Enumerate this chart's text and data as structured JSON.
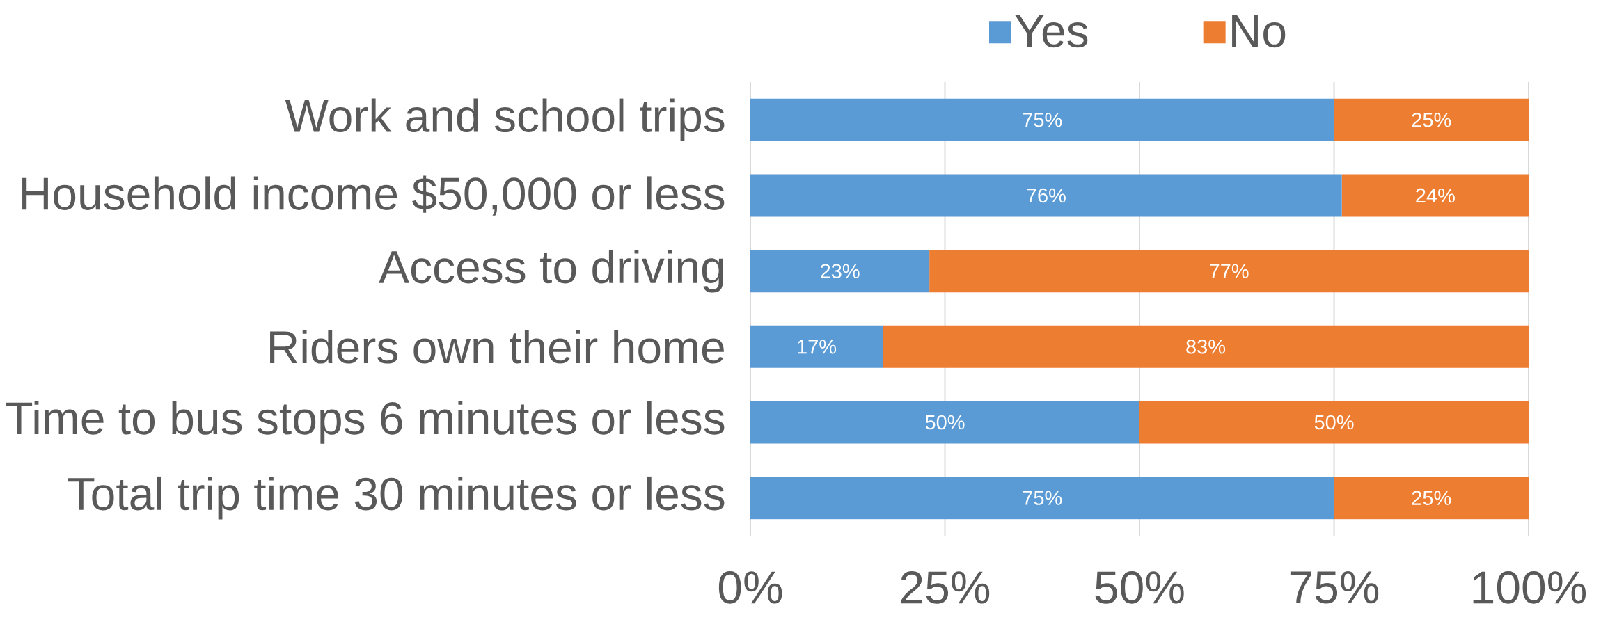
{
  "chart_data": {
    "type": "bar",
    "orientation": "horizontal",
    "stacked": true,
    "categories": [
      "Work and school trips",
      "Household income $50,000 or less",
      "Access to driving",
      "Riders own their home",
      "Time to bus stops 6 minutes or less",
      "Total trip time 30 minutes or less"
    ],
    "series": [
      {
        "name": "Yes",
        "color": "#5b9bd5",
        "values": [
          75,
          76,
          23,
          17,
          50,
          75
        ],
        "value_labels": [
          "75%",
          "76%",
          "23%",
          "17%",
          "50%",
          "75%"
        ]
      },
      {
        "name": "No",
        "color": "#ed7d31",
        "values": [
          25,
          24,
          77,
          83,
          50,
          25
        ],
        "value_labels": [
          "25%",
          "24%",
          "77%",
          "83%",
          "50%",
          "25%"
        ]
      }
    ],
    "xlim": [
      0,
      100
    ],
    "xticks": [
      {
        "value": 0,
        "label": "0%"
      },
      {
        "value": 25,
        "label": "25%"
      },
      {
        "value": 50,
        "label": "50%"
      },
      {
        "value": 75,
        "label": "75%"
      },
      {
        "value": 100,
        "label": "100%"
      }
    ],
    "grid": "x",
    "legend": "top"
  }
}
